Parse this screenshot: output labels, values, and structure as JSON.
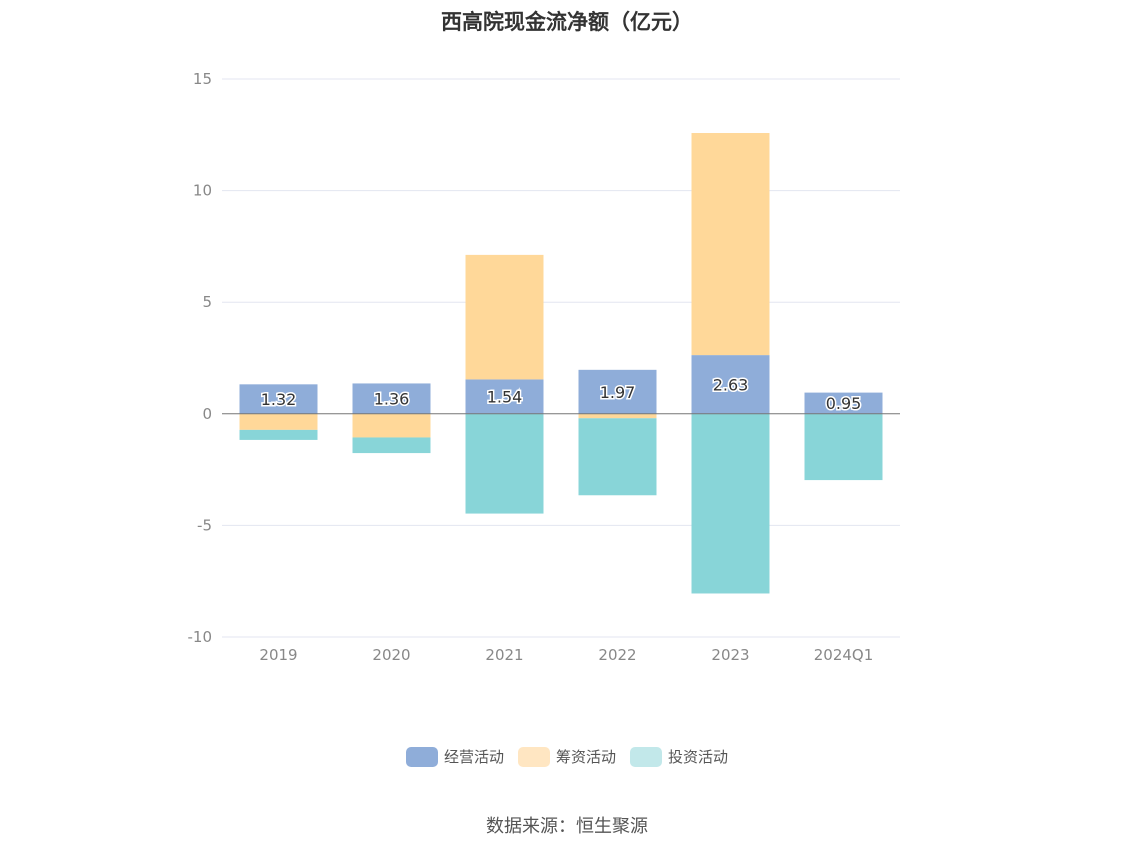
{
  "chart_data": {
    "type": "bar",
    "stacked": true,
    "title": "西高院现金流净额（亿元）",
    "categories": [
      "2019",
      "2020",
      "2021",
      "2022",
      "2023",
      "2024Q1"
    ],
    "series": [
      {
        "name": "经营活动",
        "color": "#8fadd9",
        "values": [
          1.32,
          1.36,
          1.54,
          1.97,
          2.63,
          0.95
        ]
      },
      {
        "name": "筹资活动",
        "color": "#ffd899",
        "values": [
          -0.72,
          -1.06,
          5.58,
          -0.2,
          9.95,
          0
        ]
      },
      {
        "name": "投资活动",
        "color": "#88d5d8",
        "values": [
          -0.45,
          -0.7,
          -4.47,
          -3.45,
          -8.05,
          -2.97
        ]
      }
    ],
    "data_labels": [
      "1.32",
      "1.36",
      "1.54",
      "1.97",
      "2.63",
      "0.95"
    ],
    "ylim": [
      -10,
      15
    ],
    "yticks": [
      15,
      10,
      5,
      0,
      -5,
      -10
    ],
    "ytick_labels": [
      "15",
      "10",
      "5",
      "0",
      "-5",
      "-10"
    ],
    "xlabel": "",
    "ylabel": "",
    "legend_position": "bottom",
    "grid": true
  },
  "legend": {
    "items": [
      {
        "label": "经营活动",
        "color": "#8fadd9"
      },
      {
        "label": "筹资活动",
        "color": "#ffe6c2"
      },
      {
        "label": "投资活动",
        "color": "#c2e8ea"
      }
    ]
  },
  "source": "数据来源：恒生聚源"
}
